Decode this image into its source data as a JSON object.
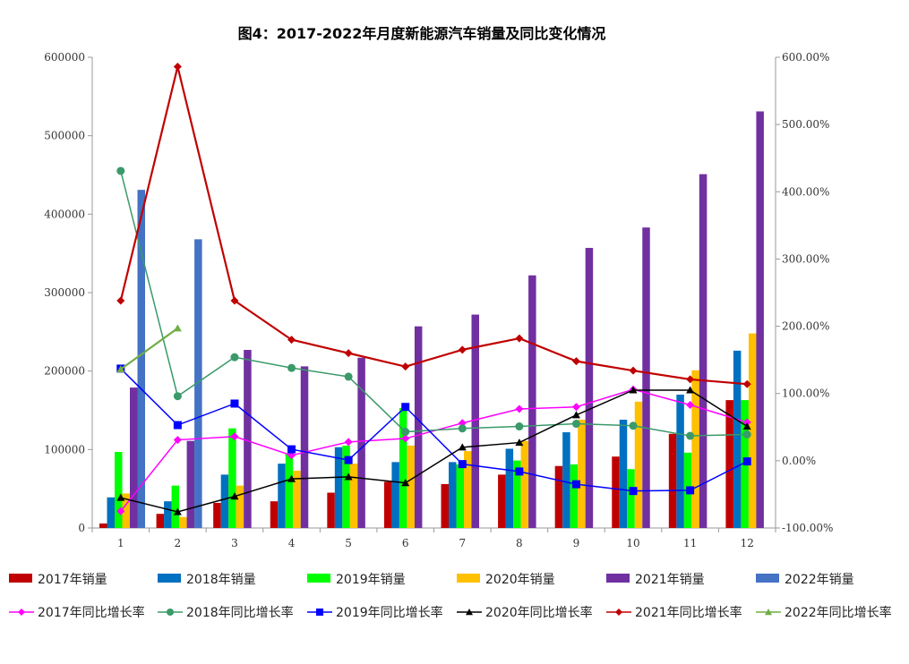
{
  "chart_data": {
    "type": "bar+line",
    "title": "图4：2017-2022年月度新能源汽车销量及同比变化情况",
    "categories": [
      "1",
      "2",
      "3",
      "4",
      "5",
      "6",
      "7",
      "8",
      "9",
      "10",
      "11",
      "12"
    ],
    "y_left": {
      "range": [
        0,
        600000
      ],
      "ticks": [
        "0",
        "100000",
        "200000",
        "300000",
        "400000",
        "500000",
        "600000"
      ]
    },
    "y_right": {
      "range": [
        -100,
        600
      ],
      "ticks": [
        "-100.00%",
        "0.00%",
        "100.00%",
        "200.00%",
        "300.00%",
        "400.00%",
        "500.00%",
        "600.00%"
      ]
    },
    "grid": false,
    "legend": "bottom",
    "bar_series": [
      {
        "name": "2017年销量",
        "color": "#C00000",
        "values": [
          5700,
          18000,
          32000,
          34000,
          45000,
          59000,
          56000,
          68000,
          79000,
          91000,
          120000,
          163000
        ]
      },
      {
        "name": "2018年销量",
        "color": "#0070C0",
        "values": [
          39000,
          34000,
          68000,
          82000,
          103000,
          84000,
          84000,
          101000,
          122000,
          138000,
          170000,
          226000
        ]
      },
      {
        "name": "2019年销量",
        "color": "#00FF00",
        "values": [
          97000,
          54000,
          127000,
          95000,
          105000,
          153000,
          81000,
          86000,
          81000,
          75000,
          96000,
          163000
        ]
      },
      {
        "name": "2020年销量",
        "color": "#FFC000",
        "values": [
          44000,
          14000,
          54000,
          73000,
          82000,
          105000,
          98000,
          111000,
          138000,
          161000,
          201000,
          248000
        ]
      },
      {
        "name": "2021年销量",
        "color": "#7030A0",
        "values": [
          179000,
          111000,
          227000,
          206000,
          217000,
          257000,
          272000,
          322000,
          357000,
          383000,
          451000,
          531000
        ]
      },
      {
        "name": "2022年销量",
        "color": "#4472C4",
        "values": [
          431000,
          368000
        ]
      }
    ],
    "line_series": [
      {
        "name": "2017年同比增长率",
        "color": "#FF00FF",
        "marker": "diamond",
        "values": [
          -75,
          31,
          36,
          8,
          28,
          33,
          56,
          77,
          80,
          106,
          83,
          57
        ]
      },
      {
        "name": "2018年同比增长率",
        "color": "#3A9A6A",
        "marker": "circle",
        "values": [
          431,
          96,
          154,
          138,
          125,
          43,
          48,
          51,
          55,
          52,
          37,
          39
        ]
      },
      {
        "name": "2019年同比增长率",
        "color": "#0000FF",
        "marker": "square",
        "values": [
          137,
          53,
          85,
          17,
          1,
          80,
          -5,
          -16,
          -35,
          -45,
          -44,
          -1
        ]
      },
      {
        "name": "2020年同比增长率",
        "color": "#000000",
        "marker": "triangle",
        "values": [
          -55,
          -76,
          -53,
          -27,
          -24,
          -33,
          20,
          27,
          68,
          105,
          105,
          51
        ]
      },
      {
        "name": "2021年同比增长率",
        "color": "#C00000",
        "marker": "diamond",
        "values": [
          238,
          586,
          238,
          180,
          160,
          140,
          165,
          182,
          148,
          134,
          121,
          114
        ]
      },
      {
        "name": "2022年同比增长率",
        "color": "#70AD47",
        "marker": "triangle",
        "values": [
          136,
          197
        ]
      }
    ]
  }
}
